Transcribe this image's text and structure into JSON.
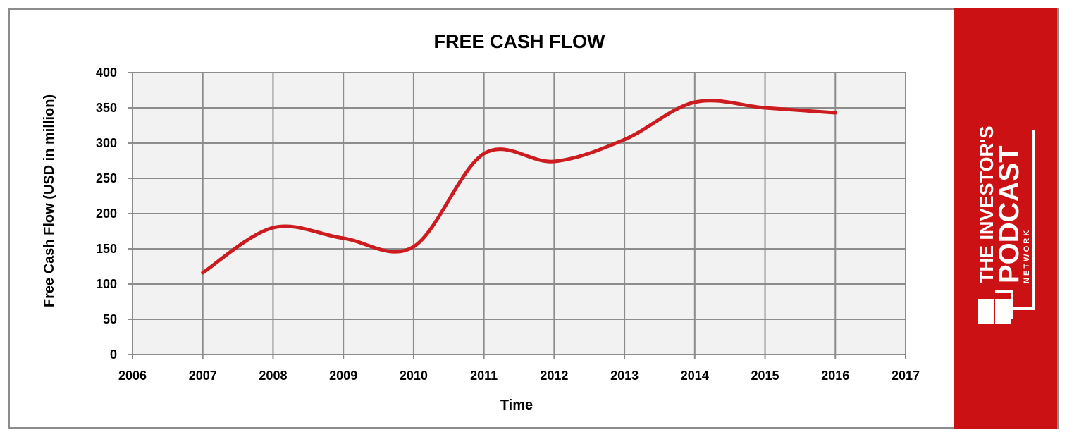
{
  "chart_data": {
    "type": "line",
    "title": "FREE CASH FLOW",
    "xlabel": "Time",
    "ylabel": "Free Cash Flow (USD in million)",
    "xlim": [
      2006,
      2017
    ],
    "ylim": [
      0,
      400
    ],
    "x_ticks": [
      "2006",
      "2007",
      "2008",
      "2009",
      "2010",
      "2011",
      "2012",
      "2013",
      "2014",
      "2015",
      "2016",
      "2017"
    ],
    "y_ticks": [
      "0",
      "50",
      "100",
      "150",
      "200",
      "250",
      "300",
      "350",
      "400"
    ],
    "grid": true,
    "series": [
      {
        "color": "#cc1c1f",
        "smooth": true,
        "x": [
          2007,
          2008,
          2009,
          2010,
          2011,
          2012,
          2013,
          2014,
          2015,
          2016
        ],
        "y": [
          116,
          180,
          165,
          153,
          285,
          274,
          305,
          358,
          350,
          343
        ]
      }
    ],
    "colors": {
      "plot_bg": "#f2f2f2",
      "grid": "#8c8c8c",
      "line": "#cc1c1f"
    }
  },
  "brand": {
    "line1": "THE INVESTOR'S",
    "line2": "PODCAST",
    "line3": "N E T W O R K",
    "color": "#cc1114"
  }
}
